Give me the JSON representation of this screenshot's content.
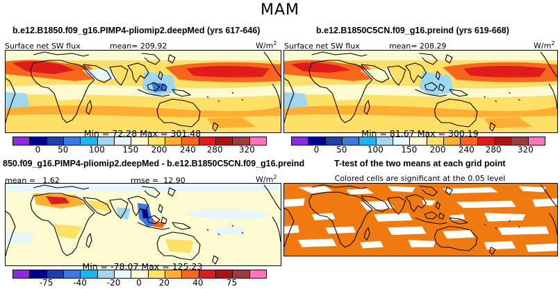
{
  "title": "MAM",
  "panels": {
    "p1": {
      "title": "b.e12.B1850.f09_g16.PIMP4-pliomip2.deepMed (yrs 617-646)",
      "variable": "Surface net SW flux",
      "mean_label": "mean=",
      "mean_value": "209.92",
      "units": "W/m",
      "units_exp": "2",
      "min_label": "Min =",
      "min_value": "72.28",
      "max_label": "Max =",
      "max_value": "301.48"
    },
    "p2": {
      "title": "b.e12.B1850C5CN.f09_g16.preind (yrs 619-668)",
      "variable": "Surface net SW flux",
      "mean_label": "mean=",
      "mean_value": "208.29",
      "units": "W/m",
      "units_exp": "2",
      "min_label": "Min =",
      "min_value": "81.67",
      "max_label": "Max =",
      "max_value": "300.19"
    },
    "p3": {
      "title": "850.f09_g16.PIMP4-pliomip2.deepMed - b.e12.B1850C5CN.f09_g16.preind",
      "mean_label": "mean =",
      "mean_value": "1.62",
      "rmse_label": "rmse =",
      "rmse_value": "12.90",
      "units": "W/m",
      "units_exp": "2",
      "min_label": "Min =",
      "min_value": "-78.07",
      "max_label": "Max =",
      "max_value": "125.23"
    },
    "p4": {
      "title": "T-test of the two means at each grid point",
      "subtitle": "Colored cells are significant at the 0.05 level"
    }
  },
  "colorbar_abs": {
    "colors": [
      "#8a2be2",
      "#00008b",
      "#1c3fa8",
      "#3a79e0",
      "#1fb4f0",
      "#9fd6f0",
      "#e6f6fb",
      "#fbfad0",
      "#ffe067",
      "#ffad33",
      "#f8651c",
      "#e01b1b",
      "#a81612",
      "#9c3d3d",
      "#ff73b9"
    ],
    "tick_labels": [
      "0",
      "50",
      "100",
      "150",
      "200",
      "240",
      "280",
      "320"
    ]
  },
  "colorbar_diff": {
    "colors": [
      "#8a2be2",
      "#00008b",
      "#1c3fa8",
      "#3a79e0",
      "#1fb4f0",
      "#9fd6f0",
      "#e6f6fb",
      "#fbfad0",
      "#ffe067",
      "#ffad33",
      "#f8651c",
      "#e01b1b",
      "#a81612",
      "#9c3d3d",
      "#ff73b9"
    ],
    "tick_labels": [
      "-75",
      "-40",
      "-20",
      "0",
      "20",
      "40",
      "75"
    ]
  },
  "colors": {
    "ttest_fill": "#f07a10",
    "coast": "#000000"
  }
}
